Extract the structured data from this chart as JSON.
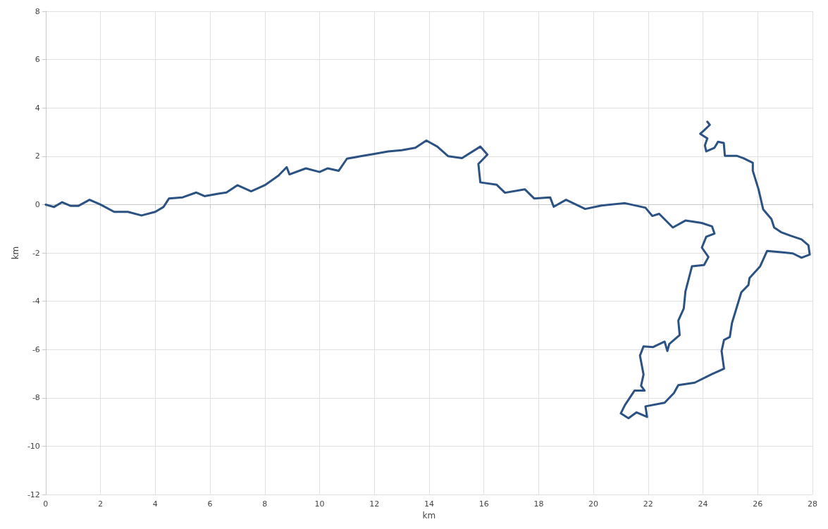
{
  "chart_data": {
    "type": "line",
    "xlabel": "km",
    "ylabel": "km",
    "xlim": [
      0,
      28
    ],
    "xticks": [
      0,
      2,
      4,
      6,
      8,
      10,
      12,
      14,
      16,
      18,
      20,
      22,
      24,
      26,
      28
    ],
    "ylim": [
      -12,
      8
    ],
    "yticks": [
      -12,
      -10,
      -8,
      -6,
      -4,
      -2,
      0,
      2,
      4,
      6,
      8
    ],
    "grid": true,
    "marker": "none",
    "line_style": "solid",
    "series": [
      {
        "color": "#2b5283",
        "x": [
          0,
          0.3,
          0.6,
          0.9,
          1.2,
          1.6,
          2.0,
          2.5,
          3.0,
          3.5,
          4.0,
          4.3,
          4.5,
          5.0,
          5.5,
          5.8,
          6.3,
          6.6,
          7.0,
          7.5,
          8.0,
          8.5,
          8.8,
          8.9,
          9.5,
          10.0,
          10.3,
          10.7,
          11.0,
          11.5,
          12.0,
          12.5,
          13.0,
          13.5,
          13.9,
          14.3,
          14.7,
          15.2,
          15.87,
          16.13,
          15.8,
          15.87,
          16.47,
          16.77,
          17.5,
          17.84,
          18.42,
          18.55,
          19.0,
          19.7,
          20.3,
          21.14,
          21.9,
          22.15,
          22.4,
          22.9,
          23.36,
          23.95,
          24.33,
          24.42,
          24.12,
          23.96,
          24.2,
          24.04,
          23.6,
          23.36,
          23.3,
          23.1,
          23.15,
          22.77,
          22.7,
          22.6,
          22.17,
          21.83,
          21.7,
          21.83,
          21.74,
          21.87,
          21.5,
          21.15,
          21.0,
          21.28,
          21.57,
          21.96,
          21.9,
          22.6,
          22.94,
          23.1,
          23.7,
          24.3,
          24.77,
          24.68,
          24.77,
          24.98,
          25.06,
          25.4,
          25.66,
          25.7,
          26.09,
          26.34,
          26.85,
          27.28,
          27.6,
          27.9,
          27.85,
          27.6,
          27.2,
          26.85,
          26.6,
          26.5,
          26.2,
          26.03,
          25.82,
          25.82,
          25.48,
          25.23,
          24.8,
          24.76,
          24.55,
          24.42,
          24.12,
          24.07,
          24.16,
          23.9,
          24.04,
          24.25,
          24.16
        ],
        "values": [
          0,
          -0.1,
          0.1,
          -0.05,
          -0.05,
          0.2,
          0.0,
          -0.3,
          -0.3,
          -0.45,
          -0.3,
          -0.1,
          0.25,
          0.3,
          0.5,
          0.35,
          0.45,
          0.5,
          0.8,
          0.55,
          0.8,
          1.2,
          1.55,
          1.25,
          1.5,
          1.35,
          1.5,
          1.4,
          1.9,
          2.0,
          2.1,
          2.2,
          2.25,
          2.35,
          2.65,
          2.4,
          2.0,
          1.92,
          2.4,
          2.07,
          1.68,
          0.92,
          0.82,
          0.49,
          0.63,
          0.25,
          0.3,
          -0.09,
          0.2,
          -0.18,
          -0.04,
          0.06,
          -0.13,
          -0.47,
          -0.38,
          -0.95,
          -0.66,
          -0.76,
          -0.9,
          -1.2,
          -1.33,
          -1.78,
          -2.17,
          -2.5,
          -2.55,
          -3.6,
          -4.3,
          -4.8,
          -5.4,
          -5.77,
          -6.06,
          -5.67,
          -5.9,
          -5.87,
          -6.25,
          -7.03,
          -7.5,
          -7.7,
          -7.7,
          -8.3,
          -8.64,
          -8.84,
          -8.6,
          -8.79,
          -8.35,
          -8.2,
          -7.8,
          -7.47,
          -7.37,
          -7.03,
          -6.79,
          -6.06,
          -5.6,
          -5.48,
          -4.9,
          -3.63,
          -3.33,
          -3.04,
          -2.55,
          -1.92,
          -1.97,
          -2.02,
          -2.2,
          -2.07,
          -1.68,
          -1.44,
          -1.29,
          -1.14,
          -0.95,
          -0.6,
          -0.2,
          0.63,
          1.4,
          1.73,
          1.92,
          2.02,
          2.02,
          2.55,
          2.6,
          2.35,
          2.2,
          2.45,
          2.74,
          2.93,
          3.07,
          3.3,
          3.43
        ]
      }
    ]
  }
}
